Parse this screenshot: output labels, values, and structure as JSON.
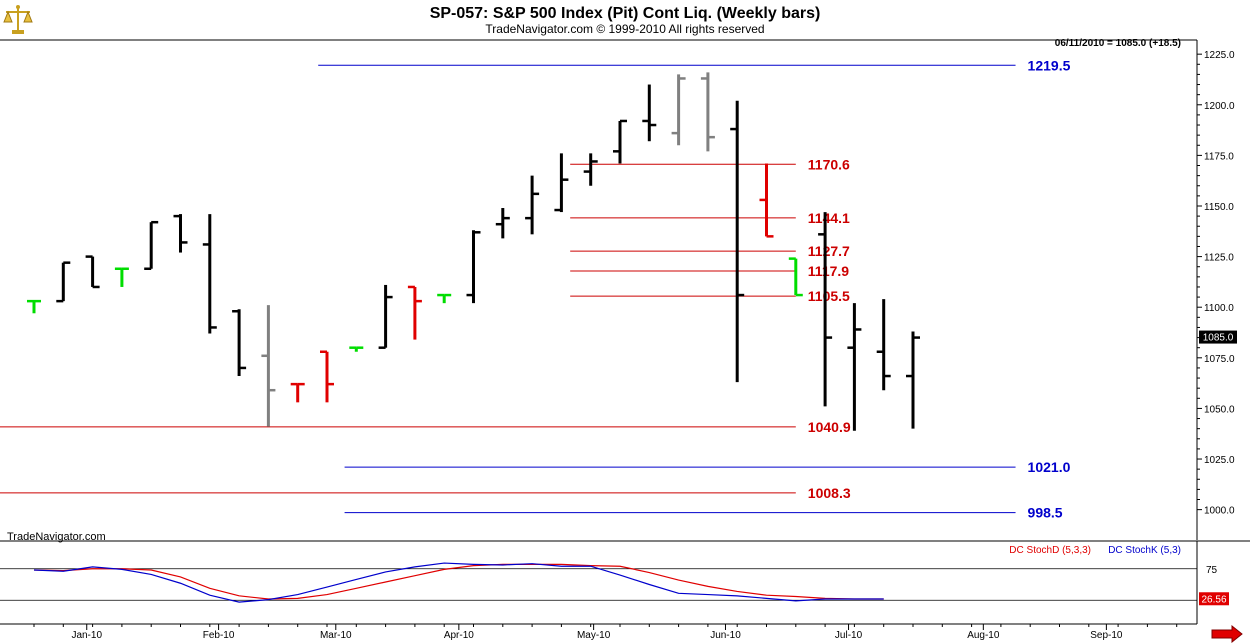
{
  "header": {
    "title": "SP-057:  S&P 500 Index (Pit) Cont Liq.  (Weekly bars)",
    "subtitle": "TradeNavigator.com © 1999-2010 All rights reserved",
    "last_info": "06/11/2010 = 1085.0 (+18.5)",
    "watermark": "TradeNavigator.com"
  },
  "colors": {
    "background": "#ffffff",
    "bar_up": "#000000",
    "bar_gray": "#808080",
    "bar_red": "#e00000",
    "bar_green": "#00dd00",
    "level_red": "#cc0000",
    "level_blue": "#0000cc",
    "stoch_d": "#e00000",
    "stoch_k": "#0000cc",
    "axis": "#000000"
  },
  "icons": {
    "logo": "golden-scales-icon",
    "scroll_right": "red-arrow-right-icon"
  },
  "chart_data": {
    "type": "ohlc",
    "ylim": [
      985,
      1232
    ],
    "yticks": [
      1000.0,
      1025.0,
      1050.0,
      1075.0,
      1100.0,
      1125.0,
      1150.0,
      1175.0,
      1200.0,
      1225.0
    ],
    "x_labels": [
      {
        "label": "Jan-10",
        "x": 1.8
      },
      {
        "label": "Feb-10",
        "x": 6.3
      },
      {
        "label": "Mar-10",
        "x": 10.3
      },
      {
        "label": "Apr-10",
        "x": 14.5
      },
      {
        "label": "May-10",
        "x": 19.1
      },
      {
        "label": "Jun-10",
        "x": 23.6
      },
      {
        "label": "Jul-10",
        "x": 27.8
      },
      {
        "label": "Aug-10",
        "x": 32.4
      },
      {
        "label": "Sep-10",
        "x": 36.6
      }
    ],
    "xlim": [
      0,
      39.9
    ],
    "current_price": "1085.0",
    "bars": [
      {
        "o": 1103,
        "h": 1103,
        "l": 1097,
        "c": 1103,
        "color": "green"
      },
      {
        "o": 1103,
        "h": 1122,
        "l": 1103,
        "c": 1122,
        "color": "black"
      },
      {
        "o": 1125,
        "h": 1125,
        "l": 1110,
        "c": 1110,
        "color": "black"
      },
      {
        "o": 1119,
        "h": 1119,
        "l": 1110,
        "c": 1119,
        "color": "green"
      },
      {
        "o": 1119,
        "h": 1142,
        "l": 1119,
        "c": 1142,
        "color": "black"
      },
      {
        "o": 1145,
        "h": 1146,
        "l": 1127,
        "c": 1132,
        "color": "black"
      },
      {
        "o": 1131,
        "h": 1146,
        "l": 1087,
        "c": 1090,
        "color": "black"
      },
      {
        "o": 1098,
        "h": 1099,
        "l": 1066,
        "c": 1070,
        "color": "black"
      },
      {
        "o": 1076,
        "h": 1101,
        "l": 1041,
        "c": 1059,
        "color": "gray"
      },
      {
        "o": 1062,
        "h": 1062,
        "l": 1053,
        "c": 1062,
        "color": "red"
      },
      {
        "o": 1078,
        "h": 1078,
        "l": 1053,
        "c": 1062,
        "color": "red"
      },
      {
        "o": 1080,
        "h": 1080,
        "l": 1078,
        "c": 1080,
        "color": "green"
      },
      {
        "o": 1080,
        "h": 1111,
        "l": 1080,
        "c": 1105,
        "color": "black"
      },
      {
        "o": 1110,
        "h": 1110,
        "l": 1084,
        "c": 1103,
        "color": "red"
      },
      {
        "o": 1106,
        "h": 1106,
        "l": 1102,
        "c": 1106,
        "color": "green"
      },
      {
        "o": 1106,
        "h": 1138,
        "l": 1102,
        "c": 1137,
        "color": "black"
      },
      {
        "o": 1141,
        "h": 1149,
        "l": 1134,
        "c": 1144,
        "color": "black"
      },
      {
        "o": 1144,
        "h": 1165,
        "l": 1136,
        "c": 1156,
        "color": "black"
      },
      {
        "o": 1148,
        "h": 1176,
        "l": 1147,
        "c": 1163,
        "color": "black"
      },
      {
        "o": 1167,
        "h": 1176,
        "l": 1160,
        "c": 1172,
        "color": "black"
      },
      {
        "o": 1177,
        "h": 1192,
        "l": 1171,
        "c": 1192,
        "color": "black"
      },
      {
        "o": 1192,
        "h": 1210,
        "l": 1182,
        "c": 1190,
        "color": "black"
      },
      {
        "o": 1186,
        "h": 1215,
        "l": 1180,
        "c": 1213,
        "color": "gray"
      },
      {
        "o": 1213,
        "h": 1216,
        "l": 1177,
        "c": 1184,
        "color": "gray"
      },
      {
        "o": 1188,
        "h": 1202,
        "l": 1063,
        "c": 1106,
        "color": "black"
      },
      {
        "o": 1153,
        "h": 1171,
        "l": 1135,
        "c": 1135,
        "color": "red"
      },
      {
        "o": 1124,
        "h": 1124,
        "l": 1106,
        "c": 1106,
        "color": "green"
      },
      {
        "o": 1136,
        "h": 1147,
        "l": 1051,
        "c": 1085,
        "color": "black"
      },
      {
        "o": 1080,
        "h": 1102,
        "l": 1039,
        "c": 1089,
        "color": "black"
      },
      {
        "o": 1078,
        "h": 1104,
        "l": 1059,
        "c": 1066,
        "color": "black"
      },
      {
        "o": 1066,
        "h": 1088,
        "l": 1040,
        "c": 1085,
        "color": "black"
      }
    ],
    "levels": [
      {
        "value": 1219.5,
        "label": "1219.5",
        "color": "blue",
        "x_start": 9.7,
        "x_end": 33.5
      },
      {
        "value": 1170.6,
        "label": "1170.6",
        "color": "red",
        "x_start": 18.3,
        "x_end": 26.0
      },
      {
        "value": 1144.1,
        "label": "1144.1",
        "color": "red",
        "x_start": 18.3,
        "x_end": 26.0
      },
      {
        "value": 1127.7,
        "label": "1127.7",
        "color": "red",
        "x_start": 18.3,
        "x_end": 26.0
      },
      {
        "value": 1117.9,
        "label": "1117.9",
        "color": "red",
        "x_start": 18.3,
        "x_end": 26.0
      },
      {
        "value": 1105.5,
        "label": "1105.5",
        "color": "red",
        "x_start": 18.3,
        "x_end": 26.0
      },
      {
        "value": 1040.9,
        "label": "1040.9",
        "color": "red",
        "x_start": 0,
        "x_end": 26.0
      },
      {
        "value": 1021.0,
        "label": "1021.0",
        "color": "blue",
        "x_start": 10.6,
        "x_end": 33.5
      },
      {
        "value": 1008.3,
        "label": "1008.3",
        "color": "red",
        "x_start": 0,
        "x_end": 26.0
      },
      {
        "value": 998.5,
        "label": "998.5",
        "color": "blue",
        "x_start": 10.6,
        "x_end": 33.5
      }
    ],
    "stochastic": {
      "legend_d": "DC StochD (5,3,3)",
      "legend_k": "DC StochK (5,3)",
      "ylim": [
        0,
        100
      ],
      "upper_line": 75,
      "upper_label": "75",
      "lower_line": 25,
      "current_value": "26.56",
      "d": [
        73,
        72,
        75,
        75,
        73,
        62,
        44,
        32,
        27,
        28,
        34,
        44,
        54,
        64,
        74,
        80,
        82,
        82,
        82,
        80,
        79,
        69,
        57,
        47,
        39,
        33,
        31,
        28,
        27,
        27
      ],
      "k": [
        73,
        71,
        78,
        74,
        66,
        52,
        33,
        22,
        26,
        34,
        46,
        58,
        70,
        78,
        84,
        82,
        81,
        83,
        79,
        79,
        65,
        50,
        36,
        34,
        32,
        28,
        24,
        27,
        27,
        27
      ]
    }
  }
}
